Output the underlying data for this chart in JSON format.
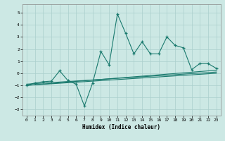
{
  "xlabel": "Humidex (Indice chaleur)",
  "bg_color": "#cce8e4",
  "line_color": "#1a7a6e",
  "grid_color": "#aacfcc",
  "xlim": [
    -0.5,
    23.5
  ],
  "ylim": [
    -3.5,
    5.7
  ],
  "xticks": [
    0,
    1,
    2,
    3,
    4,
    5,
    6,
    7,
    8,
    9,
    10,
    11,
    12,
    13,
    14,
    15,
    16,
    17,
    18,
    19,
    20,
    21,
    22,
    23
  ],
  "yticks": [
    -3,
    -2,
    -1,
    0,
    1,
    2,
    3,
    4,
    5
  ],
  "scatter_x": [
    0,
    1,
    2,
    3,
    4,
    5,
    6,
    7,
    8,
    9,
    10,
    11,
    12,
    13,
    14,
    15,
    16,
    17,
    18,
    19,
    20,
    21,
    22,
    23
  ],
  "scatter_y": [
    -1.0,
    -0.8,
    -0.7,
    -0.65,
    0.2,
    -0.6,
    -0.9,
    -2.7,
    -0.8,
    1.8,
    0.7,
    4.9,
    3.3,
    1.6,
    2.6,
    1.6,
    1.6,
    3.0,
    2.3,
    2.1,
    0.3,
    0.8,
    0.8,
    0.4
  ],
  "line1_x": [
    0,
    23
  ],
  "line1_y": [
    -1.0,
    0.25
  ],
  "line2_x": [
    0,
    23
  ],
  "line2_y": [
    -0.9,
    0.1
  ],
  "line3_x": [
    0,
    23
  ],
  "line3_y": [
    -1.0,
    0.0
  ]
}
